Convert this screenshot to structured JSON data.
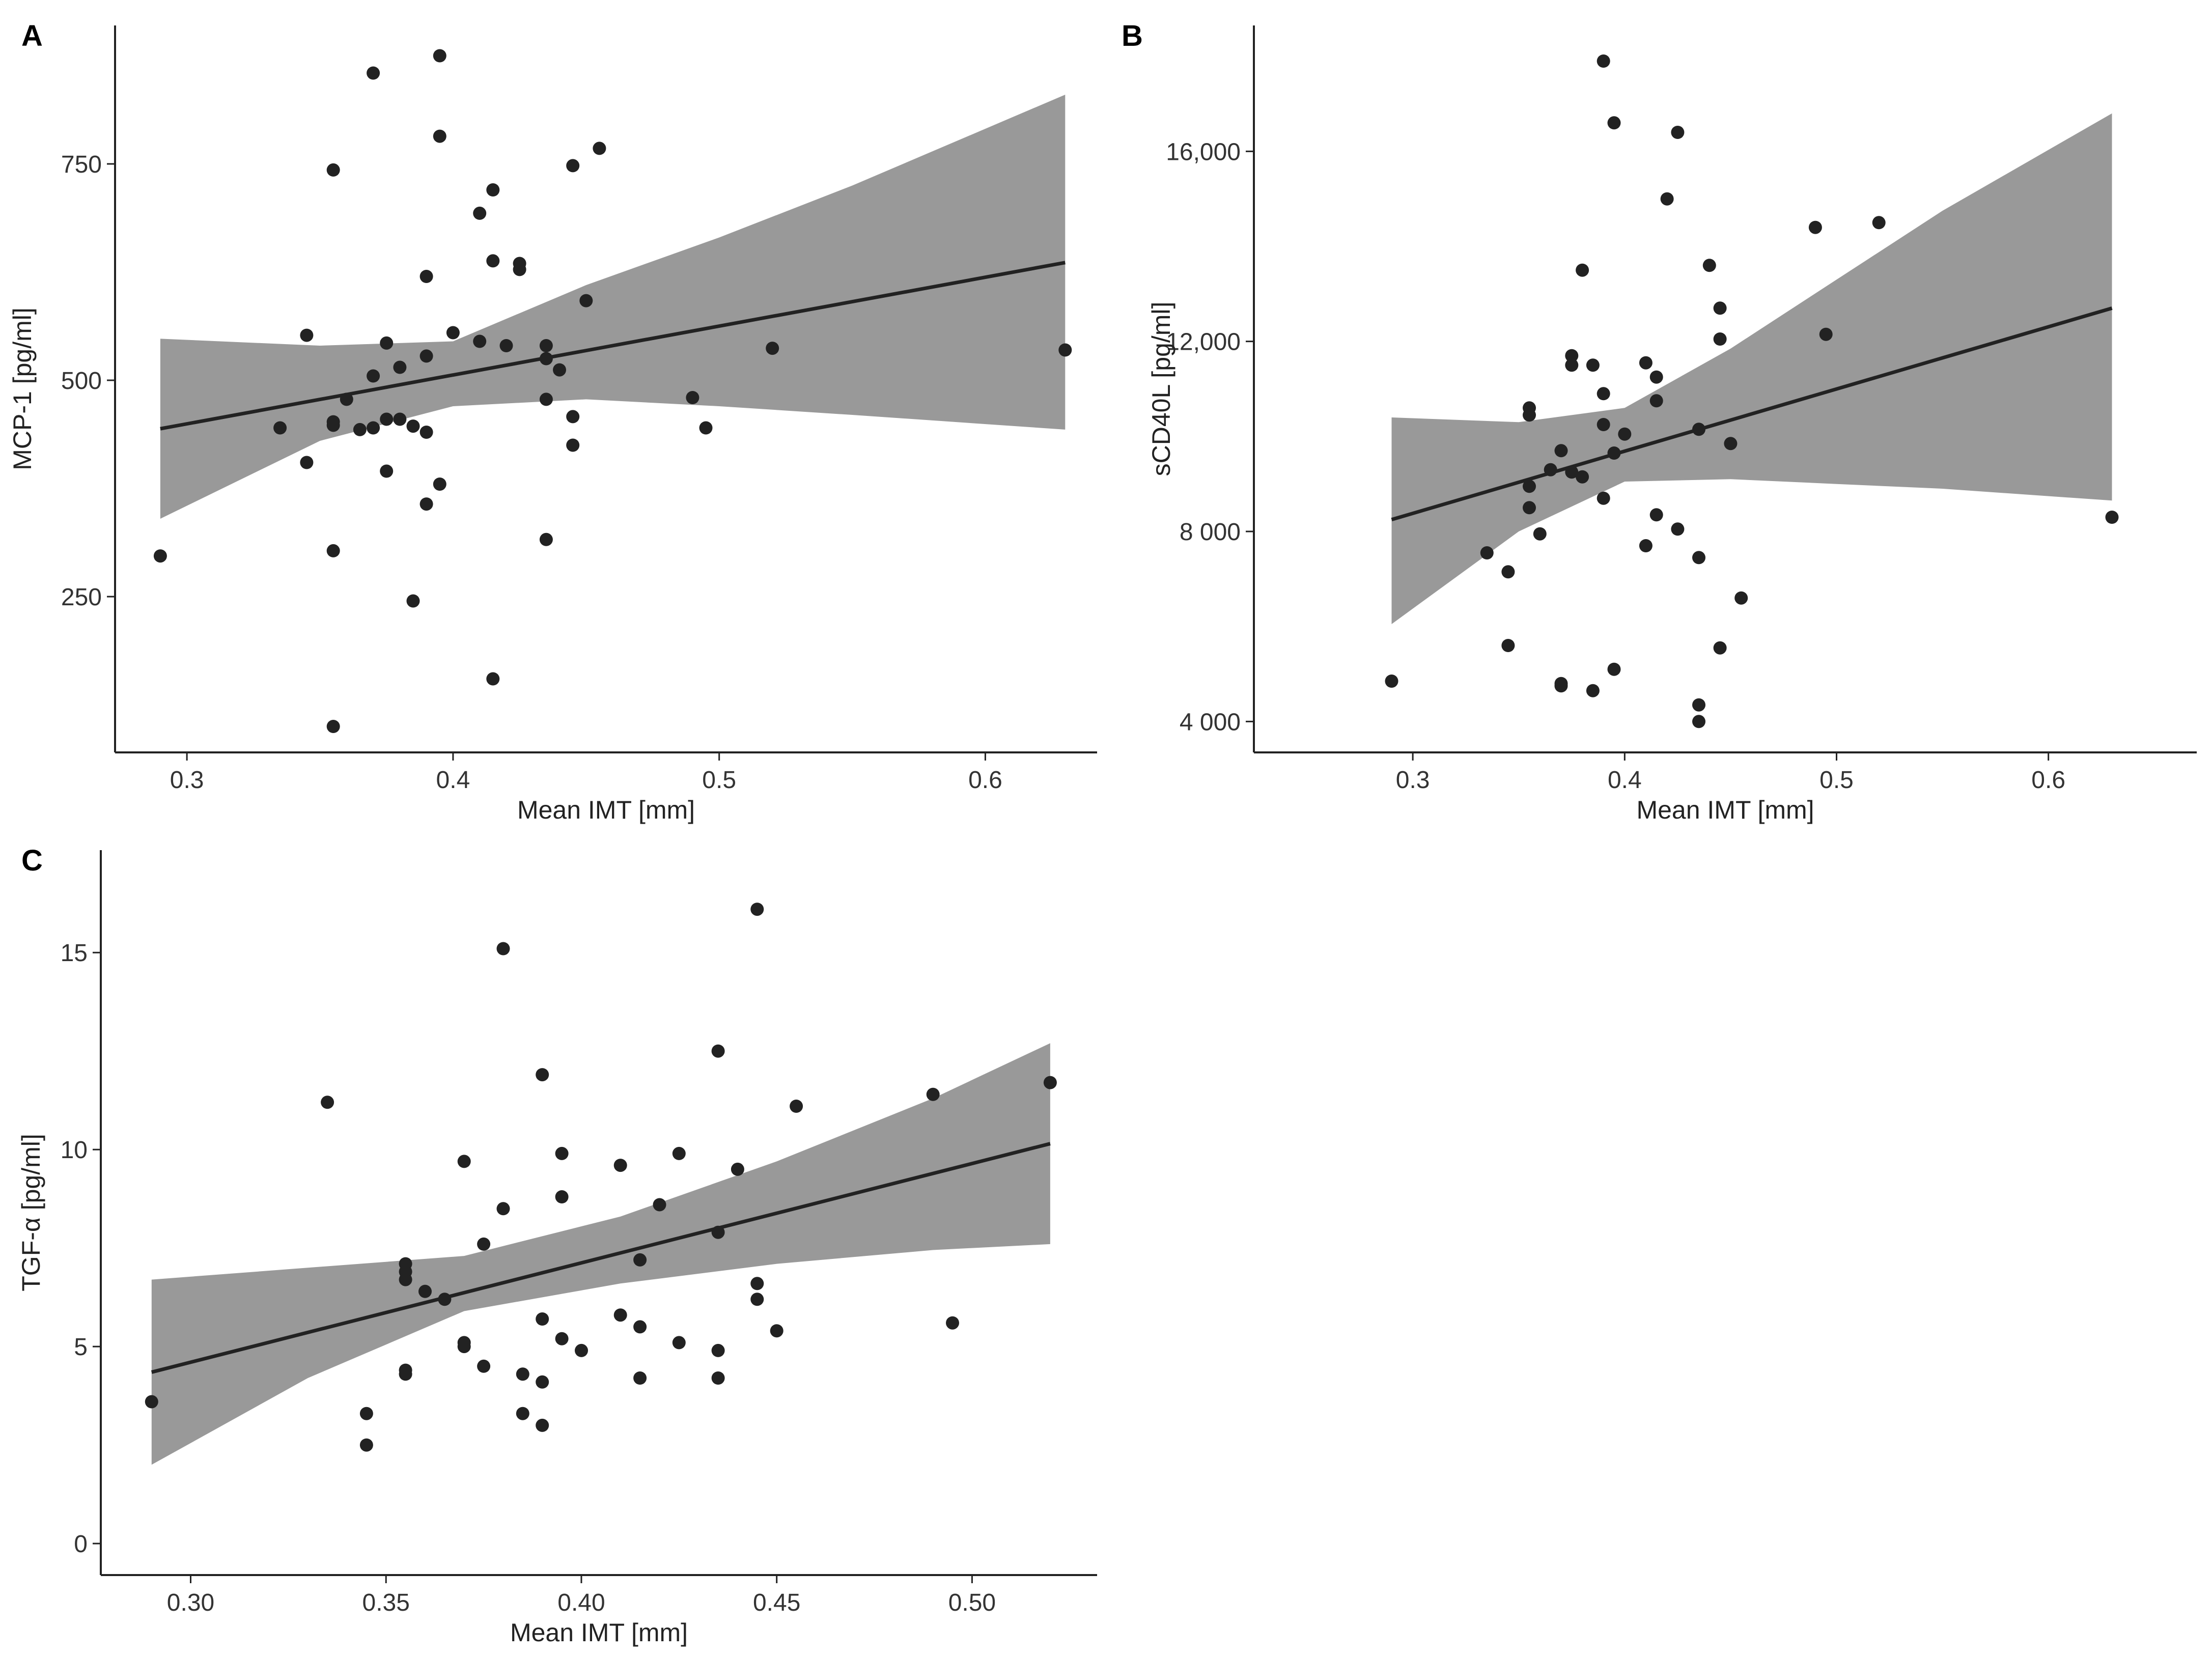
{
  "chart_data": [
    {
      "panel": "A",
      "type": "scatter",
      "title": "",
      "xlabel": "Mean IMT [mm]",
      "ylabel": "MCP-1 [pg/ml]",
      "xlim": [
        0.273,
        0.642
      ],
      "ylim": [
        70,
        910
      ],
      "xticks": [
        {
          "v": 0.3,
          "label": "0.3"
        },
        {
          "v": 0.4,
          "label": "0.4"
        },
        {
          "v": 0.5,
          "label": "0.5"
        },
        {
          "v": 0.6,
          "label": "0.6"
        }
      ],
      "yticks": [
        {
          "v": 250,
          "label": "250"
        },
        {
          "v": 500,
          "label": "500"
        },
        {
          "v": 750,
          "label": "750"
        }
      ],
      "fit": {
        "x": [
          0.29,
          0.63
        ],
        "y": [
          444,
          636
        ]
      },
      "band": [
        {
          "x": 0.29,
          "lo": 340,
          "hi": 548
        },
        {
          "x": 0.35,
          "lo": 430,
          "hi": 540
        },
        {
          "x": 0.4,
          "lo": 470,
          "hi": 545
        },
        {
          "x": 0.45,
          "lo": 478,
          "hi": 610
        },
        {
          "x": 0.5,
          "lo": 470,
          "hi": 665
        },
        {
          "x": 0.55,
          "lo": 460,
          "hi": 725
        },
        {
          "x": 0.63,
          "lo": 443,
          "hi": 830
        }
      ],
      "points": [
        [
          0.29,
          297
        ],
        [
          0.335,
          445
        ],
        [
          0.345,
          405
        ],
        [
          0.345,
          552
        ],
        [
          0.355,
          448
        ],
        [
          0.355,
          452
        ],
        [
          0.355,
          743
        ],
        [
          0.355,
          303
        ],
        [
          0.355,
          100
        ],
        [
          0.36,
          478
        ],
        [
          0.365,
          443
        ],
        [
          0.37,
          445
        ],
        [
          0.37,
          505
        ],
        [
          0.37,
          855
        ],
        [
          0.375,
          455
        ],
        [
          0.375,
          395
        ],
        [
          0.375,
          543
        ],
        [
          0.38,
          455
        ],
        [
          0.38,
          515
        ],
        [
          0.385,
          447
        ],
        [
          0.385,
          245
        ],
        [
          0.39,
          440
        ],
        [
          0.39,
          528
        ],
        [
          0.39,
          357
        ],
        [
          0.39,
          620
        ],
        [
          0.395,
          875
        ],
        [
          0.395,
          782
        ],
        [
          0.395,
          380
        ],
        [
          0.4,
          555
        ],
        [
          0.41,
          693
        ],
        [
          0.41,
          545
        ],
        [
          0.415,
          720
        ],
        [
          0.415,
          638
        ],
        [
          0.415,
          155
        ],
        [
          0.42,
          540
        ],
        [
          0.425,
          635
        ],
        [
          0.425,
          628
        ],
        [
          0.435,
          540
        ],
        [
          0.435,
          525
        ],
        [
          0.435,
          478
        ],
        [
          0.435,
          316
        ],
        [
          0.44,
          512
        ],
        [
          0.445,
          748
        ],
        [
          0.445,
          458
        ],
        [
          0.445,
          425
        ],
        [
          0.45,
          592
        ],
        [
          0.455,
          768
        ],
        [
          0.49,
          480
        ],
        [
          0.495,
          445
        ],
        [
          0.52,
          537
        ],
        [
          0.63,
          535
        ]
      ]
    },
    {
      "panel": "B",
      "type": "scatter",
      "title": "",
      "xlabel": "Mean IMT [mm]",
      "ylabel": "sCD40L [pg/ml]",
      "xlim": [
        0.225,
        0.67
      ],
      "ylim": [
        3350,
        18650
      ],
      "xticks": [
        {
          "v": 0.3,
          "label": "0.3"
        },
        {
          "v": 0.4,
          "label": "0.4"
        },
        {
          "v": 0.5,
          "label": "0.5"
        },
        {
          "v": 0.6,
          "label": "0.6"
        }
      ],
      "yticks": [
        {
          "v": 4000,
          "label": "4 000"
        },
        {
          "v": 8000,
          "label": "8 000"
        },
        {
          "v": 12000,
          "label": "12,000"
        },
        {
          "v": 16000,
          "label": "16,000"
        }
      ],
      "fit": {
        "x": [
          0.29,
          0.63
        ],
        "y": [
          8250,
          12700
        ]
      },
      "band": [
        {
          "x": 0.29,
          "lo": 6050,
          "hi": 10400
        },
        {
          "x": 0.35,
          "lo": 8000,
          "hi": 10300
        },
        {
          "x": 0.4,
          "lo": 9050,
          "hi": 10600
        },
        {
          "x": 0.45,
          "lo": 9100,
          "hi": 11850
        },
        {
          "x": 0.5,
          "lo": 9000,
          "hi": 13300
        },
        {
          "x": 0.55,
          "lo": 8900,
          "hi": 14750
        },
        {
          "x": 0.63,
          "lo": 8650,
          "hi": 16800
        }
      ],
      "points": [
        [
          0.29,
          4850
        ],
        [
          0.335,
          7550
        ],
        [
          0.345,
          5600
        ],
        [
          0.345,
          7150
        ],
        [
          0.355,
          10600
        ],
        [
          0.355,
          10450
        ],
        [
          0.355,
          8950
        ],
        [
          0.355,
          8500
        ],
        [
          0.36,
          7950
        ],
        [
          0.365,
          9300
        ],
        [
          0.37,
          9700
        ],
        [
          0.37,
          4800
        ],
        [
          0.37,
          4750
        ],
        [
          0.375,
          11700
        ],
        [
          0.375,
          11500
        ],
        [
          0.375,
          9250
        ],
        [
          0.38,
          13500
        ],
        [
          0.38,
          9150
        ],
        [
          0.385,
          11500
        ],
        [
          0.385,
          4650
        ],
        [
          0.39,
          17900
        ],
        [
          0.39,
          10900
        ],
        [
          0.39,
          10250
        ],
        [
          0.39,
          8700
        ],
        [
          0.395,
          16600
        ],
        [
          0.395,
          9650
        ],
        [
          0.395,
          5100
        ],
        [
          0.4,
          10050
        ],
        [
          0.41,
          11550
        ],
        [
          0.41,
          7700
        ],
        [
          0.415,
          11250
        ],
        [
          0.415,
          10750
        ],
        [
          0.415,
          8350
        ],
        [
          0.42,
          15000
        ],
        [
          0.425,
          16400
        ],
        [
          0.425,
          8050
        ],
        [
          0.435,
          10150
        ],
        [
          0.435,
          7450
        ],
        [
          0.435,
          4350
        ],
        [
          0.435,
          4000
        ],
        [
          0.44,
          13600
        ],
        [
          0.445,
          12700
        ],
        [
          0.445,
          12050
        ],
        [
          0.445,
          5550
        ],
        [
          0.45,
          9850
        ],
        [
          0.455,
          6600
        ],
        [
          0.49,
          14400
        ],
        [
          0.495,
          12150
        ],
        [
          0.52,
          14500
        ],
        [
          0.63,
          8300
        ]
      ]
    },
    {
      "panel": "C",
      "type": "scatter",
      "title": "",
      "xlabel": "Mean IMT [mm]",
      "ylabel": "TGF-α [pg/ml]",
      "xlim": [
        0.277,
        0.532
      ],
      "ylim": [
        -0.8,
        17.6
      ],
      "xticks": [
        {
          "v": 0.3,
          "label": "0.30"
        },
        {
          "v": 0.35,
          "label": "0.35"
        },
        {
          "v": 0.4,
          "label": "0.40"
        },
        {
          "v": 0.45,
          "label": "0.45"
        },
        {
          "v": 0.5,
          "label": "0.50"
        }
      ],
      "yticks": [
        {
          "v": 0,
          "label": "0"
        },
        {
          "v": 5,
          "label": "5"
        },
        {
          "v": 10,
          "label": "10"
        },
        {
          "v": 15,
          "label": "15"
        }
      ],
      "fit": {
        "x": [
          0.29,
          0.52
        ],
        "y": [
          4.35,
          10.15
        ]
      },
      "band": [
        {
          "x": 0.29,
          "lo": 2.0,
          "hi": 6.7
        },
        {
          "x": 0.33,
          "lo": 4.2,
          "hi": 7.0
        },
        {
          "x": 0.37,
          "lo": 5.9,
          "hi": 7.3
        },
        {
          "x": 0.41,
          "lo": 6.6,
          "hi": 8.3
        },
        {
          "x": 0.45,
          "lo": 7.1,
          "hi": 9.7
        },
        {
          "x": 0.49,
          "lo": 7.45,
          "hi": 11.3
        },
        {
          "x": 0.52,
          "lo": 7.6,
          "hi": 12.7
        }
      ],
      "points": [
        [
          0.29,
          3.6
        ],
        [
          0.335,
          11.2
        ],
        [
          0.345,
          3.3
        ],
        [
          0.345,
          2.5
        ],
        [
          0.355,
          7.1
        ],
        [
          0.355,
          6.9
        ],
        [
          0.355,
          6.7
        ],
        [
          0.355,
          4.4
        ],
        [
          0.355,
          4.3
        ],
        [
          0.36,
          6.4
        ],
        [
          0.365,
          6.2
        ],
        [
          0.37,
          9.7
        ],
        [
          0.37,
          5.1
        ],
        [
          0.37,
          5.0
        ],
        [
          0.375,
          7.6
        ],
        [
          0.375,
          4.5
        ],
        [
          0.38,
          15.1
        ],
        [
          0.38,
          8.5
        ],
        [
          0.385,
          4.3
        ],
        [
          0.385,
          3.3
        ],
        [
          0.39,
          11.9
        ],
        [
          0.39,
          5.7
        ],
        [
          0.39,
          4.1
        ],
        [
          0.39,
          3.0
        ],
        [
          0.395,
          9.9
        ],
        [
          0.395,
          8.8
        ],
        [
          0.395,
          5.2
        ],
        [
          0.4,
          4.9
        ],
        [
          0.41,
          9.6
        ],
        [
          0.41,
          5.8
        ],
        [
          0.415,
          7.2
        ],
        [
          0.415,
          5.5
        ],
        [
          0.415,
          4.2
        ],
        [
          0.42,
          8.6
        ],
        [
          0.425,
          9.9
        ],
        [
          0.425,
          5.1
        ],
        [
          0.435,
          12.5
        ],
        [
          0.435,
          7.9
        ],
        [
          0.435,
          4.9
        ],
        [
          0.435,
          4.2
        ],
        [
          0.44,
          9.5
        ],
        [
          0.445,
          16.1
        ],
        [
          0.445,
          6.6
        ],
        [
          0.445,
          6.2
        ],
        [
          0.45,
          5.4
        ],
        [
          0.455,
          11.1
        ],
        [
          0.49,
          11.4
        ],
        [
          0.495,
          5.6
        ],
        [
          0.52,
          11.7
        ]
      ]
    }
  ]
}
